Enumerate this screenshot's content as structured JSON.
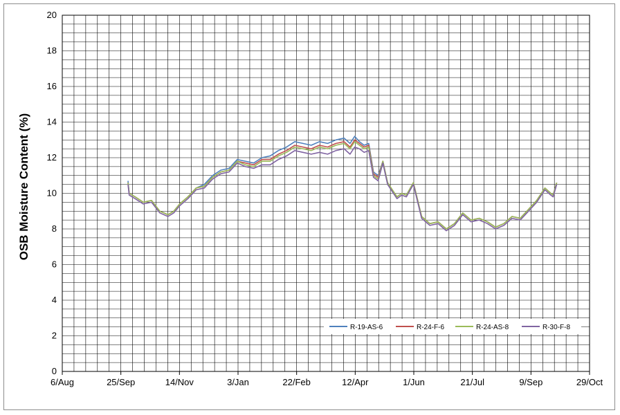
{
  "chart_data": {
    "type": "line",
    "title": "",
    "xlabel": "",
    "ylabel": "OSB Moisture Content (%)",
    "xlim": [
      "2013-08-06",
      "2014-10-29"
    ],
    "ylim": [
      0,
      20
    ],
    "x_ticks": [
      "6/Aug",
      "25/Sep",
      "14/Nov",
      "3/Jan",
      "22/Feb",
      "12/Apr",
      "1/Jun",
      "21/Jul",
      "9/Sep",
      "29/Oct"
    ],
    "y_ticks": [
      0,
      2,
      4,
      6,
      8,
      10,
      12,
      14,
      16,
      18,
      20
    ],
    "grid": true,
    "legend_position": "bottom-right",
    "series": [
      {
        "name": "R-19-AS-6",
        "color": "#4f81bd",
        "x": [
          "2013-10-01",
          "2013-10-02",
          "2013-10-07",
          "2013-10-14",
          "2013-10-21",
          "2013-10-28",
          "2013-11-04",
          "2013-11-09",
          "2013-11-14",
          "2013-11-21",
          "2013-11-28",
          "2013-12-05",
          "2013-12-12",
          "2013-12-19",
          "2013-12-26",
          "2014-01-02",
          "2014-01-09",
          "2014-01-16",
          "2014-01-23",
          "2014-01-30",
          "2014-02-06",
          "2014-02-13",
          "2014-02-20",
          "2014-02-27",
          "2014-03-06",
          "2014-03-13",
          "2014-03-20",
          "2014-03-27",
          "2014-04-03",
          "2014-04-08",
          "2014-04-12",
          "2014-04-16",
          "2014-04-20",
          "2014-04-24",
          "2014-04-28",
          "2014-05-02",
          "2014-05-06",
          "2014-05-10",
          "2014-05-14",
          "2014-05-18",
          "2014-05-22",
          "2014-05-26",
          "2014-06-01",
          "2014-06-08",
          "2014-06-15",
          "2014-06-22",
          "2014-06-29",
          "2014-07-06",
          "2014-07-13",
          "2014-07-20",
          "2014-07-27",
          "2014-08-03",
          "2014-08-10",
          "2014-08-17",
          "2014-08-24",
          "2014-08-31",
          "2014-09-07",
          "2014-09-14",
          "2014-09-21",
          "2014-09-26",
          "2014-09-28",
          "2014-10-01"
        ],
        "y": [
          10.7,
          10.0,
          9.8,
          9.5,
          9.6,
          9.0,
          8.8,
          9.0,
          9.4,
          9.8,
          10.3,
          10.5,
          11.0,
          11.3,
          11.4,
          11.9,
          11.8,
          11.7,
          12.0,
          12.1,
          12.4,
          12.6,
          12.9,
          12.8,
          12.7,
          12.9,
          12.8,
          13.0,
          13.1,
          12.8,
          13.2,
          12.9,
          12.7,
          12.8,
          11.2,
          11.0,
          11.8,
          10.6,
          10.2,
          9.8,
          10.0,
          9.9,
          10.6,
          8.7,
          8.3,
          8.4,
          8.0,
          8.3,
          8.9,
          8.5,
          8.6,
          8.4,
          8.1,
          8.3,
          8.7,
          8.6,
          9.1,
          9.6,
          10.3,
          10.0,
          9.9,
          10.6
        ]
      },
      {
        "name": "R-24-F-6",
        "color": "#c0504d",
        "x": [
          "2013-10-01",
          "2013-10-02",
          "2013-10-07",
          "2013-10-14",
          "2013-10-21",
          "2013-10-28",
          "2013-11-04",
          "2013-11-09",
          "2013-11-14",
          "2013-11-21",
          "2013-11-28",
          "2013-12-05",
          "2013-12-12",
          "2013-12-19",
          "2013-12-26",
          "2014-01-02",
          "2014-01-09",
          "2014-01-16",
          "2014-01-23",
          "2014-01-30",
          "2014-02-06",
          "2014-02-13",
          "2014-02-20",
          "2014-02-27",
          "2014-03-06",
          "2014-03-13",
          "2014-03-20",
          "2014-03-27",
          "2014-04-03",
          "2014-04-08",
          "2014-04-12",
          "2014-04-16",
          "2014-04-20",
          "2014-04-24",
          "2014-04-28",
          "2014-05-02",
          "2014-05-06",
          "2014-05-10",
          "2014-05-14",
          "2014-05-18",
          "2014-05-22",
          "2014-05-26",
          "2014-06-01",
          "2014-06-08",
          "2014-06-15",
          "2014-06-22",
          "2014-06-29",
          "2014-07-06",
          "2014-07-13",
          "2014-07-20",
          "2014-07-27",
          "2014-08-03",
          "2014-08-10",
          "2014-08-17",
          "2014-08-24",
          "2014-08-31",
          "2014-09-07",
          "2014-09-14",
          "2014-09-21",
          "2014-09-26",
          "2014-09-28",
          "2014-10-01"
        ],
        "y": [
          10.6,
          10.0,
          9.8,
          9.5,
          9.6,
          9.0,
          8.8,
          9.0,
          9.4,
          9.8,
          10.3,
          10.4,
          10.9,
          11.2,
          11.3,
          11.8,
          11.7,
          11.6,
          11.9,
          11.9,
          12.2,
          12.4,
          12.7,
          12.6,
          12.5,
          12.7,
          12.6,
          12.8,
          12.9,
          12.6,
          13.0,
          12.8,
          12.6,
          12.7,
          11.1,
          10.9,
          11.8,
          10.6,
          10.2,
          9.8,
          10.0,
          9.9,
          10.6,
          8.7,
          8.3,
          8.4,
          8.0,
          8.3,
          8.9,
          8.5,
          8.6,
          8.4,
          8.1,
          8.3,
          8.7,
          8.6,
          9.1,
          9.6,
          10.3,
          10.0,
          9.9,
          10.6
        ]
      },
      {
        "name": "R-24-AS-8",
        "color": "#9bbb59",
        "x": [
          "2013-10-01",
          "2013-10-02",
          "2013-10-07",
          "2013-10-14",
          "2013-10-21",
          "2013-10-28",
          "2013-11-04",
          "2013-11-09",
          "2013-11-14",
          "2013-11-21",
          "2013-11-28",
          "2013-12-05",
          "2013-12-12",
          "2013-12-19",
          "2013-12-26",
          "2014-01-02",
          "2014-01-09",
          "2014-01-16",
          "2014-01-23",
          "2014-01-30",
          "2014-02-06",
          "2014-02-13",
          "2014-02-20",
          "2014-02-27",
          "2014-03-06",
          "2014-03-13",
          "2014-03-20",
          "2014-03-27",
          "2014-04-03",
          "2014-04-08",
          "2014-04-12",
          "2014-04-16",
          "2014-04-20",
          "2014-04-24",
          "2014-04-28",
          "2014-05-02",
          "2014-05-06",
          "2014-05-10",
          "2014-05-14",
          "2014-05-18",
          "2014-05-22",
          "2014-05-26",
          "2014-06-01",
          "2014-06-08",
          "2014-06-15",
          "2014-06-22",
          "2014-06-29",
          "2014-07-06",
          "2014-07-13",
          "2014-07-20",
          "2014-07-27",
          "2014-08-03",
          "2014-08-10",
          "2014-08-17",
          "2014-08-24",
          "2014-08-31",
          "2014-09-07",
          "2014-09-14",
          "2014-09-21",
          "2014-09-26",
          "2014-09-28",
          "2014-10-01"
        ],
        "y": [
          10.6,
          10.0,
          9.8,
          9.5,
          9.6,
          9.0,
          8.8,
          9.0,
          9.4,
          9.8,
          10.3,
          10.4,
          10.9,
          11.2,
          11.3,
          11.8,
          11.6,
          11.5,
          11.8,
          11.8,
          12.1,
          12.3,
          12.6,
          12.5,
          12.4,
          12.6,
          12.5,
          12.7,
          12.8,
          12.5,
          12.9,
          12.7,
          12.5,
          12.6,
          11.0,
          10.8,
          11.8,
          10.6,
          10.2,
          9.8,
          10.0,
          9.9,
          10.6,
          8.7,
          8.3,
          8.4,
          8.0,
          8.3,
          8.9,
          8.5,
          8.6,
          8.4,
          8.1,
          8.3,
          8.7,
          8.6,
          9.1,
          9.6,
          10.3,
          10.0,
          9.9,
          10.6
        ]
      },
      {
        "name": "R-30-F-8",
        "color": "#8064a2",
        "x": [
          "2013-10-01",
          "2013-10-02",
          "2013-10-07",
          "2013-10-14",
          "2013-10-21",
          "2013-10-28",
          "2013-11-04",
          "2013-11-09",
          "2013-11-14",
          "2013-11-21",
          "2013-11-28",
          "2013-12-05",
          "2013-12-12",
          "2013-12-19",
          "2013-12-26",
          "2014-01-02",
          "2014-01-09",
          "2014-01-16",
          "2014-01-23",
          "2014-01-30",
          "2014-02-06",
          "2014-02-13",
          "2014-02-20",
          "2014-02-27",
          "2014-03-06",
          "2014-03-13",
          "2014-03-20",
          "2014-03-27",
          "2014-04-03",
          "2014-04-08",
          "2014-04-12",
          "2014-04-16",
          "2014-04-20",
          "2014-04-24",
          "2014-04-28",
          "2014-05-02",
          "2014-05-06",
          "2014-05-10",
          "2014-05-14",
          "2014-05-18",
          "2014-05-22",
          "2014-05-26",
          "2014-06-01",
          "2014-06-08",
          "2014-06-15",
          "2014-06-22",
          "2014-06-29",
          "2014-07-06",
          "2014-07-13",
          "2014-07-20",
          "2014-07-27",
          "2014-08-03",
          "2014-08-10",
          "2014-08-17",
          "2014-08-24",
          "2014-08-31",
          "2014-09-07",
          "2014-09-14",
          "2014-09-21",
          "2014-09-26",
          "2014-09-28",
          "2014-10-01"
        ],
        "y": [
          10.5,
          9.9,
          9.7,
          9.4,
          9.5,
          8.9,
          8.7,
          8.9,
          9.3,
          9.7,
          10.2,
          10.3,
          10.8,
          11.1,
          11.2,
          11.7,
          11.5,
          11.4,
          11.6,
          11.6,
          11.9,
          12.1,
          12.4,
          12.3,
          12.2,
          12.3,
          12.2,
          12.4,
          12.5,
          12.2,
          12.6,
          12.5,
          12.3,
          12.4,
          10.9,
          10.7,
          11.7,
          10.5,
          10.1,
          9.7,
          9.9,
          9.8,
          10.5,
          8.6,
          8.2,
          8.3,
          7.9,
          8.2,
          8.8,
          8.4,
          8.5,
          8.3,
          8.0,
          8.2,
          8.6,
          8.5,
          9.0,
          9.5,
          10.2,
          9.9,
          9.8,
          10.5
        ]
      }
    ]
  }
}
